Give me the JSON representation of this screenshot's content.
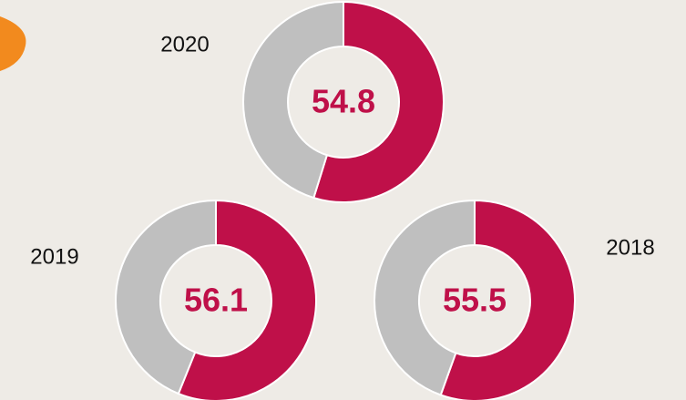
{
  "chart_data": [
    {
      "type": "pie",
      "title": "2020",
      "values": [
        54.8,
        45.2
      ],
      "value_labels": [
        "54.8"
      ],
      "colors": [
        "#bf1049",
        "#bfbfbf"
      ]
    },
    {
      "type": "pie",
      "title": "2019",
      "values": [
        56.1,
        43.9
      ],
      "value_labels": [
        "56.1"
      ],
      "colors": [
        "#bf1049",
        "#bfbfbf"
      ]
    },
    {
      "type": "pie",
      "title": "2018",
      "values": [
        55.5,
        44.5
      ],
      "value_labels": [
        "55.5"
      ],
      "colors": [
        "#bf1049",
        "#bfbfbf"
      ]
    }
  ]
}
